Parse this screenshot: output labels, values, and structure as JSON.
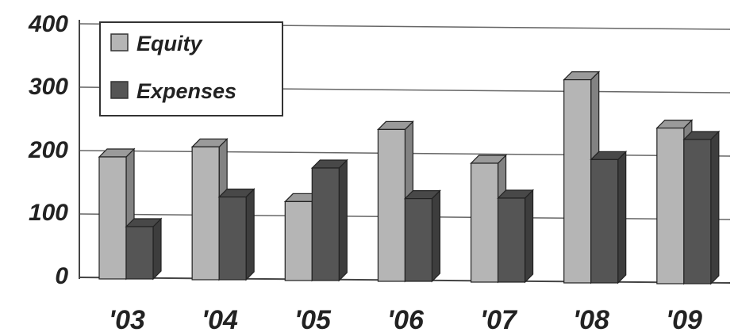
{
  "chart_data": {
    "type": "bar",
    "categories": [
      "'03",
      "'04",
      "'05",
      "'06",
      "'07",
      "'08",
      "'09"
    ],
    "series": [
      {
        "name": "Equity",
        "values": [
          190,
          207,
          122,
          237,
          185,
          318,
          243
        ],
        "color": "#b5b5b5"
      },
      {
        "name": "Expenses",
        "values": [
          80,
          128,
          175,
          128,
          130,
          192,
          225
        ],
        "color": "#555555"
      }
    ],
    "yticks": [
      "0",
      "100",
      "200",
      "300",
      "400"
    ],
    "ylim": [
      0,
      400
    ],
    "grid": true,
    "legend_position": "top-left",
    "style": "3d-column"
  }
}
